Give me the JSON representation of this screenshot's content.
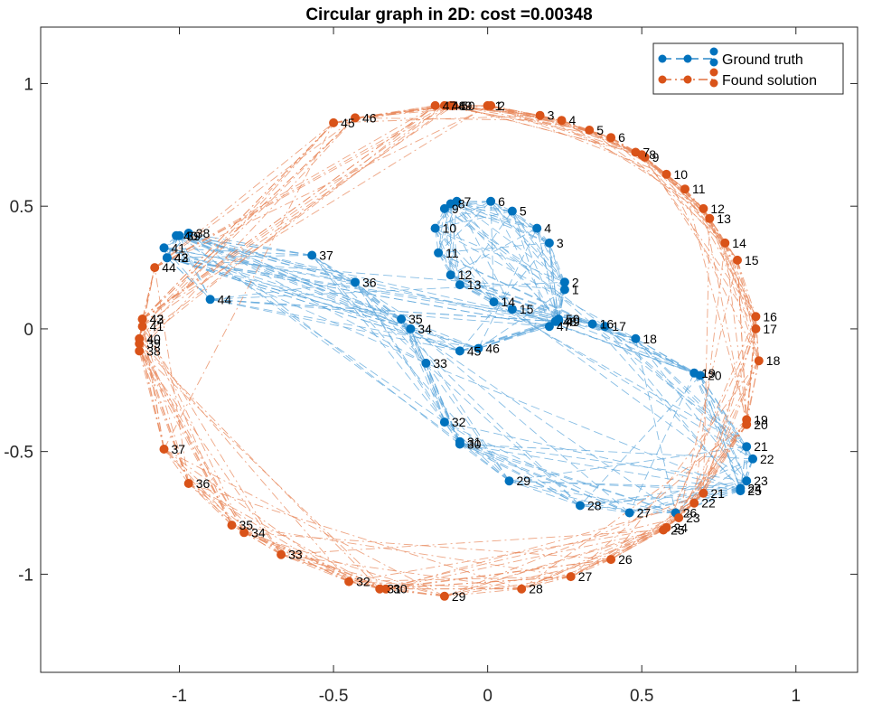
{
  "chart_data": {
    "type": "scatter",
    "title": "Circular graph in 2D: cost =0.00348",
    "xlabel": "",
    "ylabel": "",
    "xlim": [
      -1.45,
      1.2
    ],
    "ylim": [
      -1.4,
      1.23
    ],
    "xticks": [
      -1,
      -0.5,
      0,
      0.5,
      1
    ],
    "xtick_labels": [
      "-1",
      "-0.5",
      "0",
      "0.5",
      "1"
    ],
    "yticks": [
      1,
      0.5,
      0,
      -0.5,
      -1
    ],
    "ytick_labels": [
      "1",
      "0.5",
      "0",
      "-0.5",
      "-1"
    ],
    "grid": false,
    "legend_position": "top-right",
    "series": [
      {
        "name": "Ground truth",
        "color": "#0072BD",
        "line_style": "dashed",
        "points": [
          {
            "label": "1",
            "x": 0.25,
            "y": 0.16
          },
          {
            "label": "2",
            "x": 0.25,
            "y": 0.19
          },
          {
            "label": "3",
            "x": 0.2,
            "y": 0.35
          },
          {
            "label": "4",
            "x": 0.16,
            "y": 0.41
          },
          {
            "label": "5",
            "x": 0.08,
            "y": 0.48
          },
          {
            "label": "6",
            "x": 0.01,
            "y": 0.52
          },
          {
            "label": "7",
            "x": -0.1,
            "y": 0.52
          },
          {
            "label": "8",
            "x": -0.12,
            "y": 0.51
          },
          {
            "label": "9",
            "x": -0.14,
            "y": 0.49
          },
          {
            "label": "10",
            "x": -0.17,
            "y": 0.41
          },
          {
            "label": "11",
            "x": -0.16,
            "y": 0.31
          },
          {
            "label": "12",
            "x": -0.12,
            "y": 0.22
          },
          {
            "label": "13",
            "x": -0.09,
            "y": 0.18
          },
          {
            "label": "14",
            "x": 0.02,
            "y": 0.11
          },
          {
            "label": "15",
            "x": 0.08,
            "y": 0.08
          },
          {
            "label": "16",
            "x": 0.34,
            "y": 0.02
          },
          {
            "label": "17",
            "x": 0.38,
            "y": 0.01
          },
          {
            "label": "18",
            "x": 0.48,
            "y": -0.04
          },
          {
            "label": "19",
            "x": 0.67,
            "y": -0.18
          },
          {
            "label": "20",
            "x": 0.69,
            "y": -0.19
          },
          {
            "label": "21",
            "x": 0.84,
            "y": -0.48
          },
          {
            "label": "22",
            "x": 0.86,
            "y": -0.53
          },
          {
            "label": "23",
            "x": 0.84,
            "y": -0.62
          },
          {
            "label": "24",
            "x": 0.82,
            "y": -0.65
          },
          {
            "label": "25",
            "x": 0.82,
            "y": -0.66
          },
          {
            "label": "26",
            "x": 0.61,
            "y": -0.75
          },
          {
            "label": "27",
            "x": 0.46,
            "y": -0.75
          },
          {
            "label": "28",
            "x": 0.3,
            "y": -0.72
          },
          {
            "label": "29",
            "x": 0.07,
            "y": -0.62
          },
          {
            "label": "30",
            "x": -0.09,
            "y": -0.47
          },
          {
            "label": "31",
            "x": -0.09,
            "y": -0.46
          },
          {
            "label": "32",
            "x": -0.14,
            "y": -0.38
          },
          {
            "label": "33",
            "x": -0.2,
            "y": -0.14
          },
          {
            "label": "34",
            "x": -0.25,
            "y": 0.0
          },
          {
            "label": "35",
            "x": -0.28,
            "y": 0.04
          },
          {
            "label": "36",
            "x": -0.43,
            "y": 0.19
          },
          {
            "label": "37",
            "x": -0.57,
            "y": 0.3
          },
          {
            "label": "38",
            "x": -0.97,
            "y": 0.39
          },
          {
            "label": "39",
            "x": -1.0,
            "y": 0.38
          },
          {
            "label": "40",
            "x": -1.01,
            "y": 0.38
          },
          {
            "label": "41",
            "x": -1.05,
            "y": 0.33
          },
          {
            "label": "42",
            "x": -1.04,
            "y": 0.29
          },
          {
            "label": "43",
            "x": -1.04,
            "y": 0.29
          },
          {
            "label": "44",
            "x": -0.9,
            "y": 0.12
          },
          {
            "label": "45",
            "x": -0.09,
            "y": -0.09
          },
          {
            "label": "46",
            "x": -0.03,
            "y": -0.08
          },
          {
            "label": "47",
            "x": 0.2,
            "y": 0.01
          },
          {
            "label": "48",
            "x": 0.22,
            "y": 0.03
          },
          {
            "label": "49",
            "x": 0.23,
            "y": 0.03
          },
          {
            "label": "50",
            "x": 0.23,
            "y": 0.04
          }
        ]
      },
      {
        "name": "Found solution",
        "color": "#D95319",
        "line_style": "dash-dot",
        "points": [
          {
            "label": "1",
            "x": 0.0,
            "y": 0.91
          },
          {
            "label": "2",
            "x": 0.01,
            "y": 0.91
          },
          {
            "label": "3",
            "x": 0.17,
            "y": 0.87
          },
          {
            "label": "4",
            "x": 0.24,
            "y": 0.85
          },
          {
            "label": "5",
            "x": 0.33,
            "y": 0.81
          },
          {
            "label": "6",
            "x": 0.4,
            "y": 0.78
          },
          {
            "label": "7",
            "x": 0.48,
            "y": 0.72
          },
          {
            "label": "8",
            "x": 0.5,
            "y": 0.71
          },
          {
            "label": "9",
            "x": 0.51,
            "y": 0.7
          },
          {
            "label": "10",
            "x": 0.58,
            "y": 0.63
          },
          {
            "label": "11",
            "x": 0.64,
            "y": 0.57
          },
          {
            "label": "12",
            "x": 0.7,
            "y": 0.49
          },
          {
            "label": "13",
            "x": 0.72,
            "y": 0.45
          },
          {
            "label": "14",
            "x": 0.77,
            "y": 0.35
          },
          {
            "label": "15",
            "x": 0.81,
            "y": 0.28
          },
          {
            "label": "16",
            "x": 0.87,
            "y": 0.05
          },
          {
            "label": "17",
            "x": 0.87,
            "y": 0.0
          },
          {
            "label": "18",
            "x": 0.88,
            "y": -0.13
          },
          {
            "label": "19",
            "x": 0.84,
            "y": -0.37
          },
          {
            "label": "20",
            "x": 0.84,
            "y": -0.39
          },
          {
            "label": "21",
            "x": 0.7,
            "y": -0.67
          },
          {
            "label": "22",
            "x": 0.67,
            "y": -0.71
          },
          {
            "label": "23",
            "x": 0.62,
            "y": -0.77
          },
          {
            "label": "24",
            "x": 0.58,
            "y": -0.81
          },
          {
            "label": "25",
            "x": 0.57,
            "y": -0.82
          },
          {
            "label": "26",
            "x": 0.4,
            "y": -0.94
          },
          {
            "label": "27",
            "x": 0.27,
            "y": -1.01
          },
          {
            "label": "28",
            "x": 0.11,
            "y": -1.06
          },
          {
            "label": "29",
            "x": -0.14,
            "y": -1.09
          },
          {
            "label": "30",
            "x": -0.33,
            "y": -1.06
          },
          {
            "label": "31",
            "x": -0.35,
            "y": -1.06
          },
          {
            "label": "32",
            "x": -0.45,
            "y": -1.03
          },
          {
            "label": "33",
            "x": -0.67,
            "y": -0.92
          },
          {
            "label": "34",
            "x": -0.79,
            "y": -0.83
          },
          {
            "label": "35",
            "x": -0.83,
            "y": -0.8
          },
          {
            "label": "36",
            "x": -0.97,
            "y": -0.63
          },
          {
            "label": "37",
            "x": -1.05,
            "y": -0.49
          },
          {
            "label": "38",
            "x": -1.13,
            "y": -0.09
          },
          {
            "label": "39",
            "x": -1.13,
            "y": -0.06
          },
          {
            "label": "40",
            "x": -1.13,
            "y": -0.04
          },
          {
            "label": "41",
            "x": -1.12,
            "y": 0.01
          },
          {
            "label": "42",
            "x": -1.12,
            "y": 0.04
          },
          {
            "label": "43",
            "x": -1.12,
            "y": 0.04
          },
          {
            "label": "44",
            "x": -1.08,
            "y": 0.25
          },
          {
            "label": "45",
            "x": -0.5,
            "y": 0.84
          },
          {
            "label": "46",
            "x": -0.43,
            "y": 0.86
          },
          {
            "label": "47",
            "x": -0.17,
            "y": 0.91
          },
          {
            "label": "48",
            "x": -0.14,
            "y": 0.91
          },
          {
            "label": "49",
            "x": -0.12,
            "y": 0.91
          },
          {
            "label": "50",
            "x": -0.11,
            "y": 0.91
          }
        ]
      }
    ]
  }
}
